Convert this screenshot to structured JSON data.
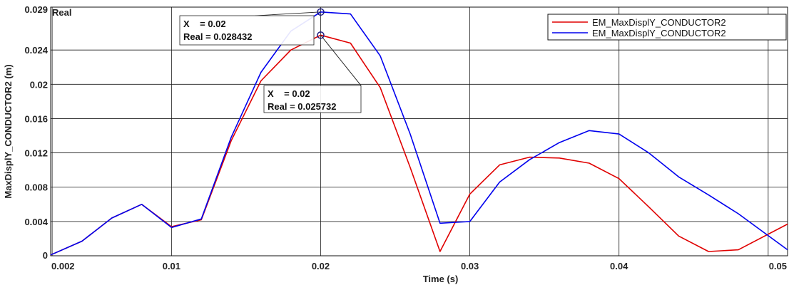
{
  "chart_data": {
    "type": "line",
    "corner_label": "Real",
    "xlabel": "Time (s)",
    "ylabel": "MaxDisplY_CONDUCTOR2 (m)",
    "xlim": [
      0.0019,
      0.0513
    ],
    "ylim": [
      0,
      0.029
    ],
    "xticks": [
      0.002,
      0.01,
      0.02,
      0.03,
      0.04,
      0.05
    ],
    "xtick_labels": [
      "0.002",
      "0.01",
      "0.02",
      "0.03",
      "0.04",
      "0.05"
    ],
    "yticks": [
      0,
      0.004,
      0.008,
      0.012,
      0.016,
      0.02,
      0.024,
      0.029
    ],
    "ytick_labels": [
      "0",
      "0.004",
      "0.008",
      "0.012",
      "0.016",
      "0.02",
      "0.024",
      "0.029"
    ],
    "xgrid": [
      0.002,
      0.01,
      0.02,
      0.03,
      0.04,
      0.05
    ],
    "ygrid": [
      0.004,
      0.008,
      0.012,
      0.016,
      0.02,
      0.024
    ],
    "legend_position": "top-right",
    "series": [
      {
        "name": "EM_MaxDisplY_CONDUCTOR2",
        "color": "#e00000",
        "x": [
          0.0019,
          0.004,
          0.006,
          0.008,
          0.01,
          0.012,
          0.014,
          0.016,
          0.018,
          0.02,
          0.022,
          0.024,
          0.026,
          0.028,
          0.03,
          0.032,
          0.034,
          0.036,
          0.038,
          0.04,
          0.042,
          0.044,
          0.046,
          0.048,
          0.0513
        ],
        "values": [
          0.0001,
          0.0017,
          0.0044,
          0.006,
          0.0034,
          0.0042,
          0.0134,
          0.0204,
          0.024,
          0.025732,
          0.0248,
          0.0196,
          0.0103,
          0.0005,
          0.0072,
          0.0106,
          0.0115,
          0.0114,
          0.0108,
          0.009,
          0.0057,
          0.0023,
          0.0005,
          0.0007,
          0.0037
        ]
      },
      {
        "name": "EM_MaxDisplY_CONDUCTOR2",
        "color": "#0000ee",
        "x": [
          0.0019,
          0.004,
          0.006,
          0.008,
          0.01,
          0.012,
          0.014,
          0.016,
          0.018,
          0.02,
          0.022,
          0.024,
          0.026,
          0.028,
          0.03,
          0.032,
          0.034,
          0.036,
          0.038,
          0.04,
          0.042,
          0.044,
          0.046,
          0.048,
          0.0513
        ],
        "values": [
          0.0001,
          0.0017,
          0.0044,
          0.006,
          0.0033,
          0.0043,
          0.0138,
          0.0214,
          0.0262,
          0.028432,
          0.0282,
          0.0233,
          0.0142,
          0.0038,
          0.004,
          0.0086,
          0.0112,
          0.0132,
          0.0146,
          0.0142,
          0.012,
          0.0092,
          0.0071,
          0.0049,
          0.0007
        ]
      }
    ],
    "datatips": [
      {
        "series": 1,
        "x": 0.02,
        "y": 0.028432,
        "line1": "X    = 0.02",
        "line2": "Real = 0.028432"
      },
      {
        "series": 0,
        "x": 0.02,
        "y": 0.025732,
        "line1": "X    = 0.02",
        "line2": "Real = 0.025732"
      }
    ]
  }
}
